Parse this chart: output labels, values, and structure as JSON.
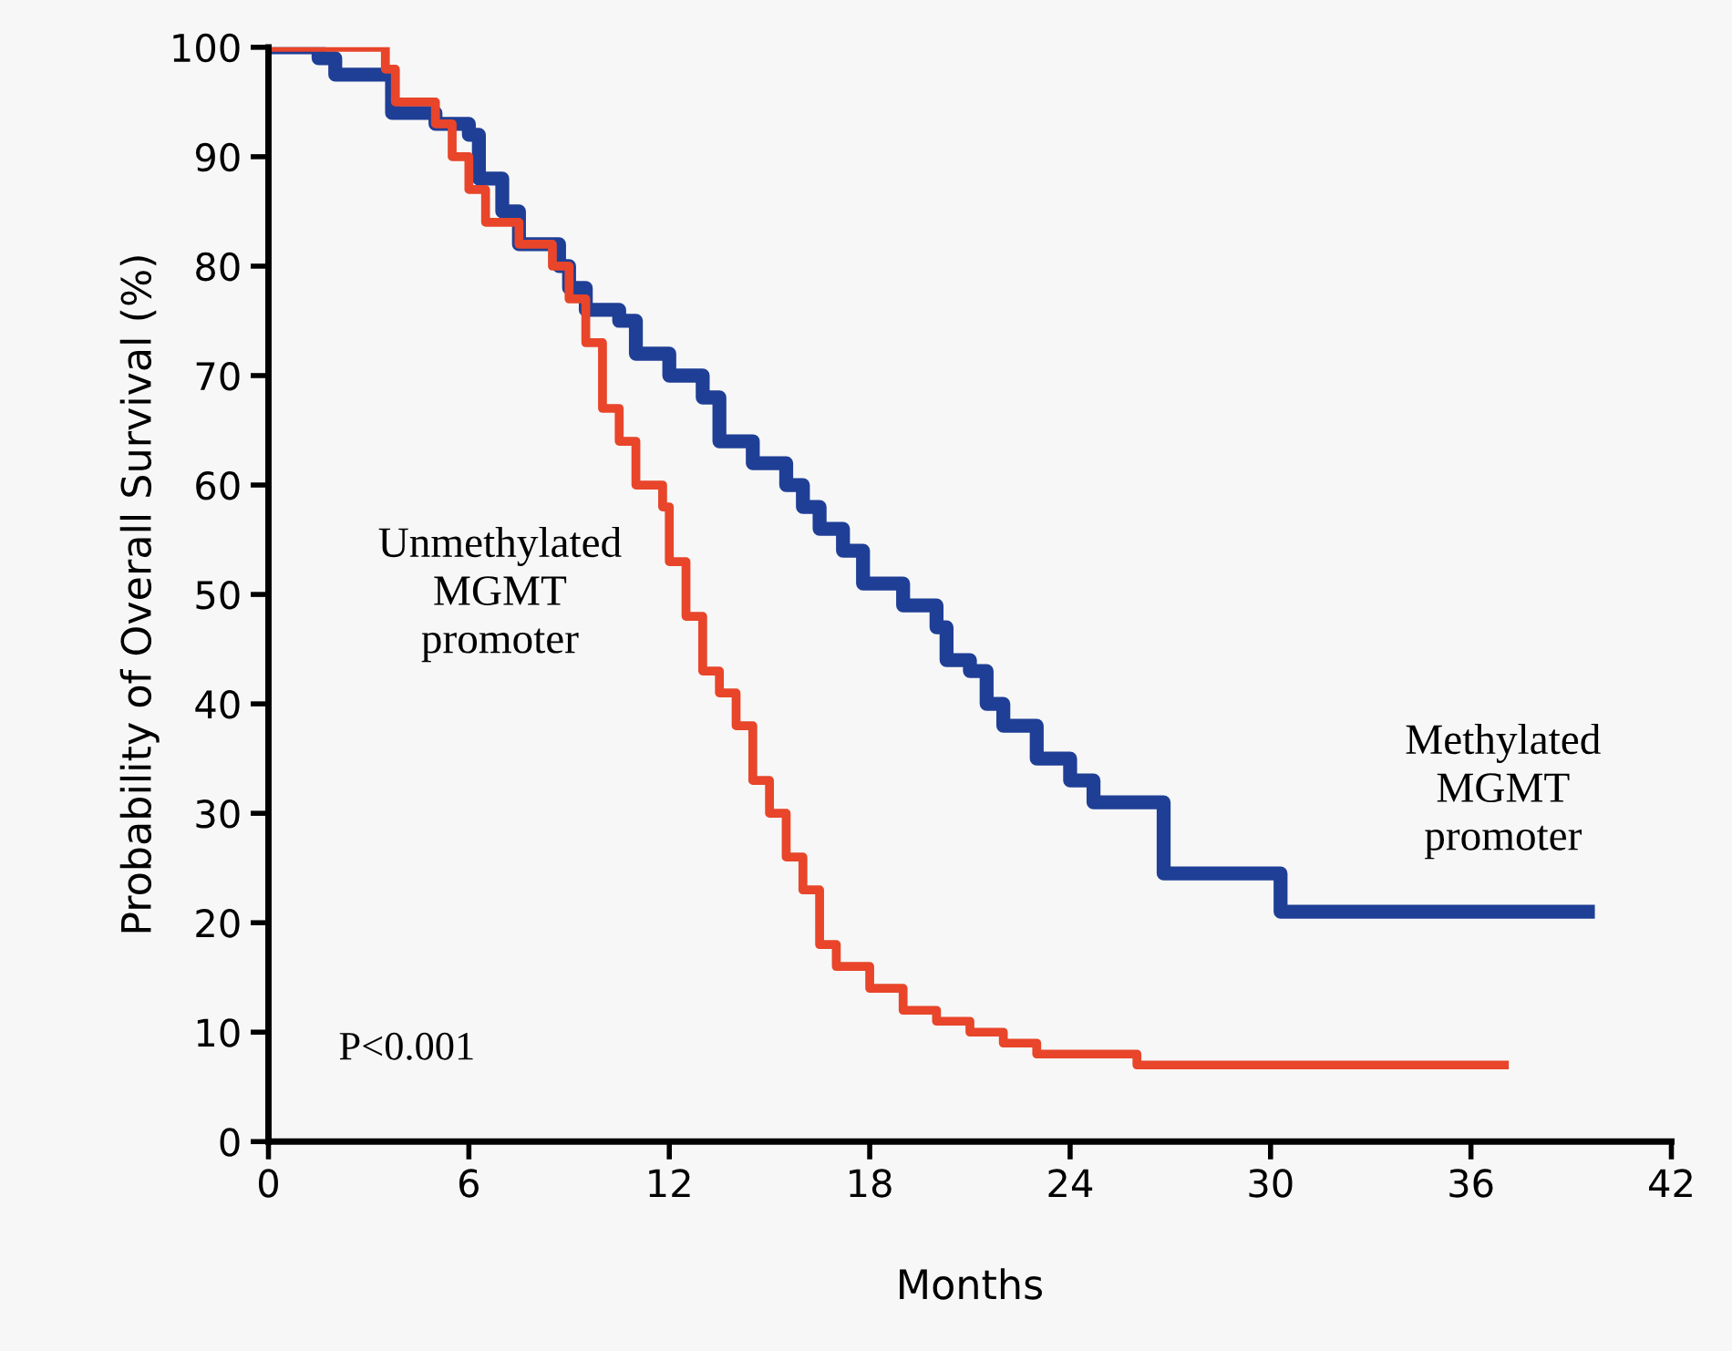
{
  "chart_data": {
    "type": "step",
    "xlabel": "Months",
    "ylabel": "Probability of Overall Survival (%)",
    "xlim": [
      0,
      42
    ],
    "xticks": [
      0,
      6,
      12,
      18,
      24,
      30,
      36,
      42
    ],
    "ylim": [
      0,
      100
    ],
    "yticks": [
      0,
      10,
      20,
      30,
      40,
      50,
      60,
      70,
      80,
      90,
      100
    ],
    "grid": false,
    "legend": false,
    "annotations": [
      "P<0.001"
    ],
    "series": [
      {
        "name": "Methylated\nMGMT\npromoter",
        "color": "#1f3f96",
        "x": [
          0,
          1.5,
          2,
          3.7,
          5,
          6,
          6.3,
          7,
          7.5,
          8.7,
          9,
          9.5,
          10.5,
          11,
          12,
          13,
          13.5,
          14.5,
          15.5,
          16,
          16.5,
          17.2,
          17.8,
          19,
          20,
          20.3,
          21,
          21.5,
          22,
          23,
          24,
          24.7,
          26.8,
          30.3,
          39.5
        ],
        "values": [
          100,
          99,
          97.5,
          94,
          93,
          92,
          88,
          85,
          82,
          80,
          78,
          76,
          75,
          72,
          70,
          68,
          64,
          62,
          60,
          58,
          56,
          54,
          51,
          49,
          47,
          44,
          43,
          40,
          38,
          35,
          33,
          31,
          24.5,
          21,
          21
        ]
      },
      {
        "name": "Unmethylated\nMGMT\npromoter",
        "color": "#e8452a",
        "x": [
          0,
          3.5,
          3.8,
          5,
          5.5,
          6,
          6.5,
          7.5,
          8.5,
          9,
          9.5,
          10,
          10.5,
          11,
          11.8,
          12,
          12.5,
          13,
          13.5,
          14,
          14.5,
          15,
          15.5,
          16,
          16.5,
          17,
          18,
          19,
          20,
          21,
          22,
          23,
          26,
          37
        ],
        "values": [
          100,
          98,
          95,
          93,
          90,
          87,
          84,
          82,
          80,
          77,
          73,
          67,
          64,
          60,
          58,
          53,
          48,
          43,
          41,
          38,
          33,
          30,
          26,
          23,
          18,
          16,
          14,
          12,
          11,
          10,
          9,
          8,
          7,
          7
        ]
      }
    ]
  }
}
